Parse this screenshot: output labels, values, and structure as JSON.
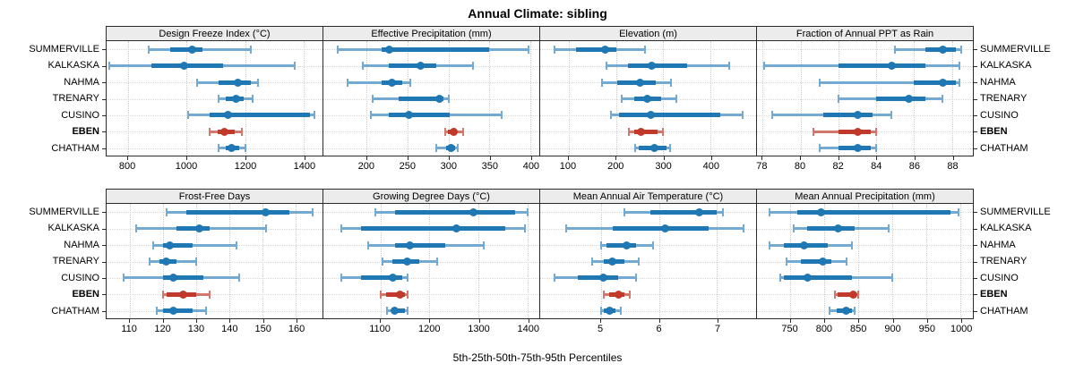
{
  "title": "Annual Climate: sibling",
  "caption": "5th-25th-50th-75th-95th Percentiles",
  "sites": [
    {
      "name": "SUMMERVILLE",
      "bold": false
    },
    {
      "name": "KALKASKA",
      "bold": false
    },
    {
      "name": "NAHMA",
      "bold": false
    },
    {
      "name": "TRENARY",
      "bold": false
    },
    {
      "name": "CUSINO",
      "bold": false
    },
    {
      "name": "EBEN",
      "bold": true
    },
    {
      "name": "CHATHAM",
      "bold": false
    }
  ],
  "colors": {
    "median": "#1f77b4",
    "whisker": "#74aad2",
    "highlight_median": "#c0392b",
    "highlight_whisker": "#d4776b",
    "strip_bg": "#ececec",
    "border": "#2b2b2b",
    "grid": "#cfcfcf"
  },
  "percentile_labels": [
    "5th",
    "25th",
    "50th",
    "75th",
    "95th"
  ],
  "chart_data": {
    "type": "dotplot-percentiles",
    "layout": "2 rows x 4 columns",
    "panels": [
      {
        "title": "Design Freeze Index (°C)",
        "domain": [
          727,
          1464
        ],
        "ticks": [
          800,
          1000,
          1200,
          1400
        ],
        "series": [
          {
            "site": "SUMMERVILLE",
            "p": [
              870,
              945,
              1020,
              1055,
              1220
            ]
          },
          {
            "site": "KALKASKA",
            "p": [
              735,
              880,
              990,
              1125,
              1370
            ]
          },
          {
            "site": "NAHMA",
            "p": [
              1035,
              1110,
              1175,
              1220,
              1245
            ]
          },
          {
            "site": "TRENARY",
            "p": [
              1110,
              1135,
              1170,
              1195,
              1225
            ]
          },
          {
            "site": "CUSINO",
            "p": [
              1005,
              1080,
              1140,
              1420,
              1435
            ]
          },
          {
            "site": "EBEN",
            "p": [
              1080,
              1105,
              1130,
              1165,
              1190
            ]
          },
          {
            "site": "CHATHAM",
            "p": [
              1110,
              1135,
              1155,
              1180,
              1200
            ]
          }
        ]
      },
      {
        "title": "Effective Precipitation (mm)",
        "domain": [
          147,
          411
        ],
        "ticks": [
          200,
          250,
          300,
          350,
          400
        ],
        "series": [
          {
            "site": "SUMMERVILLE",
            "p": [
              165,
              218,
              228,
              350,
              398
            ]
          },
          {
            "site": "KALKASKA",
            "p": [
              195,
              227,
              266,
              285,
              330
            ]
          },
          {
            "site": "NAHMA",
            "p": [
              177,
              218,
              231,
              243,
              253
            ]
          },
          {
            "site": "TRENARY",
            "p": [
              207,
              239,
              289,
              294,
              300
            ]
          },
          {
            "site": "CUSINO",
            "p": [
              205,
              227,
              252,
              302,
              365
            ]
          },
          {
            "site": "EBEN",
            "p": [
              296,
              299,
              306,
              310,
              318
            ]
          },
          {
            "site": "CHATHAM",
            "p": [
              285,
              297,
              303,
              308,
              311
            ]
          }
        ]
      },
      {
        "title": "Elevation (m)",
        "domain": [
          40,
          496
        ],
        "ticks": [
          100,
          200,
          300,
          400
        ],
        "series": [
          {
            "site": "SUMMERVILLE",
            "p": [
              70,
              116,
              178,
              200,
              262
            ]
          },
          {
            "site": "KALKASKA",
            "p": [
              180,
              226,
              275,
              350,
              440
            ]
          },
          {
            "site": "NAHMA",
            "p": [
              170,
              202,
              251,
              285,
              317
            ]
          },
          {
            "site": "TRENARY",
            "p": [
              212,
              238,
              267,
              295,
              328
            ]
          },
          {
            "site": "CUSINO",
            "p": [
              190,
              206,
              274,
              420,
              468
            ]
          },
          {
            "site": "EBEN",
            "p": [
              227,
              238,
              252,
              287,
              300
            ]
          },
          {
            "site": "CHATHAM",
            "p": [
              240,
              248,
              282,
              307,
              315
            ]
          }
        ]
      },
      {
        "title": "Fraction of Annual PPT as Rain",
        "domain": [
          77.7,
          89.1
        ],
        "ticks": [
          78,
          80,
          82,
          84,
          86,
          88
        ],
        "series": [
          {
            "site": "SUMMERVILLE",
            "p": [
              85.0,
              86.6,
              87.5,
              88.2,
              88.5
            ]
          },
          {
            "site": "KALKASKA",
            "p": [
              78.1,
              82.0,
              84.8,
              86.6,
              88.4
            ]
          },
          {
            "site": "NAHMA",
            "p": [
              81.0,
              86.0,
              87.5,
              88.2,
              88.4
            ]
          },
          {
            "site": "TRENARY",
            "p": [
              82.0,
              84.0,
              85.7,
              86.6,
              87.5
            ]
          },
          {
            "site": "CUSINO",
            "p": [
              78.5,
              81.2,
              83.0,
              83.8,
              84.8
            ]
          },
          {
            "site": "EBEN",
            "p": [
              80.7,
              82.0,
              83.0,
              83.7,
              84.0
            ]
          },
          {
            "site": "CHATHAM",
            "p": [
              81.0,
              82.0,
              83.0,
              83.7,
              84.0
            ]
          }
        ]
      },
      {
        "title": "Frost-Free Days",
        "domain": [
          103,
          168
        ],
        "ticks": [
          110,
          120,
          130,
          140,
          150,
          160
        ],
        "series": [
          {
            "site": "SUMMERVILLE",
            "p": [
              121,
              127,
              151,
              158,
              165
            ]
          },
          {
            "site": "KALKASKA",
            "p": [
              112,
              124,
              131,
              134,
              151
            ]
          },
          {
            "site": "NAHMA",
            "p": [
              117,
              120,
              122,
              129,
              142
            ]
          },
          {
            "site": "TRENARY",
            "p": [
              116,
              119,
              121,
              124,
              130
            ]
          },
          {
            "site": "CUSINO",
            "p": [
              108,
              120,
              123,
              132,
              143
            ]
          },
          {
            "site": "EBEN",
            "p": [
              120,
              121,
              126,
              130,
              134
            ]
          },
          {
            "site": "CHATHAM",
            "p": [
              118,
              120,
              123,
              129,
              133
            ]
          }
        ]
      },
      {
        "title": "Growing Degree Days (°C)",
        "domain": [
          984,
          1424
        ],
        "ticks": [
          1100,
          1200,
          1300,
          1400
        ],
        "series": [
          {
            "site": "SUMMERVILLE",
            "p": [
              1090,
              1130,
              1290,
              1375,
              1400
            ]
          },
          {
            "site": "KALKASKA",
            "p": [
              1020,
              1060,
              1255,
              1355,
              1395
            ]
          },
          {
            "site": "NAHMA",
            "p": [
              1075,
              1130,
              1160,
              1233,
              1310
            ]
          },
          {
            "site": "TRENARY",
            "p": [
              1105,
              1125,
              1155,
              1180,
              1215
            ]
          },
          {
            "site": "CUSINO",
            "p": [
              1020,
              1060,
              1125,
              1145,
              1155
            ]
          },
          {
            "site": "EBEN",
            "p": [
              1100,
              1112,
              1140,
              1150,
              1155
            ]
          },
          {
            "site": "CHATHAM",
            "p": [
              1113,
              1122,
              1130,
              1150,
              1155
            ]
          }
        ]
      },
      {
        "title": "Mean Annual Air Temperature (°C)",
        "domain": [
          3.96,
          7.67
        ],
        "ticks": [
          5,
          6,
          7
        ],
        "series": [
          {
            "site": "SUMMERVILLE",
            "p": [
              5.4,
              5.85,
              6.7,
              7.0,
              7.1
            ]
          },
          {
            "site": "KALKASKA",
            "p": [
              4.4,
              5.2,
              6.1,
              6.85,
              7.45
            ]
          },
          {
            "site": "NAHMA",
            "p": [
              5.0,
              5.1,
              5.45,
              5.6,
              5.9
            ]
          },
          {
            "site": "TRENARY",
            "p": [
              4.85,
              5.05,
              5.2,
              5.4,
              5.65
            ]
          },
          {
            "site": "CUSINO",
            "p": [
              4.2,
              4.6,
              5.05,
              5.3,
              5.6
            ]
          },
          {
            "site": "EBEN",
            "p": [
              5.05,
              5.15,
              5.3,
              5.4,
              5.5
            ]
          },
          {
            "site": "CHATHAM",
            "p": [
              5.0,
              5.06,
              5.15,
              5.25,
              5.35
            ]
          }
        ]
      },
      {
        "title": "Mean Annual Precipitation (mm)",
        "domain": [
          701,
          1018
        ],
        "ticks": [
          750,
          800,
          850,
          900,
          950,
          1000
        ],
        "series": [
          {
            "site": "SUMMERVILLE",
            "p": [
              720,
              760,
              795,
              985,
              997
            ]
          },
          {
            "site": "KALKASKA",
            "p": [
              755,
              775,
              820,
              845,
              895
            ]
          },
          {
            "site": "NAHMA",
            "p": [
              720,
              740,
              770,
              805,
              840
            ]
          },
          {
            "site": "TRENARY",
            "p": [
              745,
              765,
              798,
              810,
              832
            ]
          },
          {
            "site": "CUSINO",
            "p": [
              735,
              740,
              775,
              840,
              900
            ]
          },
          {
            "site": "EBEN",
            "p": [
              815,
              820,
              842,
              847,
              850
            ]
          },
          {
            "site": "CHATHAM",
            "p": [
              808,
              818,
              832,
              841,
              845
            ]
          }
        ]
      }
    ]
  }
}
